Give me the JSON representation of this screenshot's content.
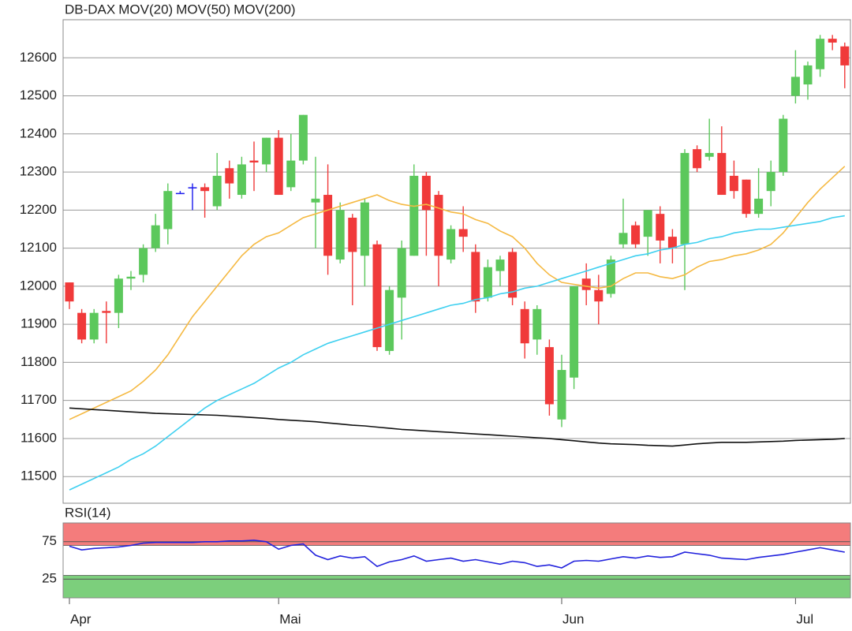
{
  "chart_data": [
    {
      "type": "candlestick",
      "series": [
        {
          "name": "DB-DAX",
          "color": "#e83030",
          "up_color": "#5cc85c",
          "down_color": "#f03a3a",
          "doji_color": "#1a1aee",
          "open": [
            12010,
            11930,
            11860,
            11935,
            11930,
            12020,
            12030,
            12100,
            12150,
            12245,
            12260,
            12260,
            12210,
            12310,
            12240,
            12330,
            12320,
            12390,
            12260,
            12330,
            12220,
            12240,
            12070,
            12180,
            12080,
            12110,
            11830,
            11970,
            12080,
            12290,
            12240,
            12070,
            12150,
            12090,
            11970,
            12040,
            12090,
            11940,
            11860,
            11840,
            11650,
            11760,
            12020,
            11990,
            11980,
            12110,
            12160,
            12130,
            12190,
            12130,
            12110,
            12360,
            12340,
            12350,
            12290,
            12280,
            12190,
            12250,
            12300,
            12500,
            12530,
            12570,
            12650,
            12630
          ],
          "high": [
            12010,
            11940,
            11940,
            11960,
            12030,
            12040,
            12110,
            12190,
            12270,
            12250,
            12270,
            12270,
            12350,
            12330,
            12340,
            12380,
            12390,
            12410,
            12400,
            12450,
            12340,
            12320,
            12220,
            12190,
            12230,
            12120,
            12000,
            12120,
            12320,
            12300,
            12250,
            12160,
            12210,
            12110,
            12070,
            12080,
            12100,
            11960,
            11950,
            11860,
            11820,
            12000,
            12060,
            12030,
            12080,
            12230,
            12170,
            12200,
            12210,
            12150,
            12360,
            12370,
            12440,
            12420,
            12330,
            12280,
            12310,
            12330,
            12450,
            12620,
            12590,
            12660,
            12660,
            12640
          ],
          "low": [
            11940,
            11850,
            11850,
            11850,
            11890,
            11990,
            12010,
            12090,
            12110,
            12245,
            12200,
            12180,
            12200,
            12230,
            12230,
            12250,
            12300,
            12240,
            12250,
            12320,
            12100,
            12030,
            12060,
            11950,
            12000,
            11830,
            11820,
            11860,
            12080,
            12080,
            12000,
            12060,
            12090,
            11930,
            11960,
            12000,
            11950,
            11810,
            11820,
            11660,
            11630,
            11730,
            11950,
            11900,
            11970,
            12100,
            12100,
            12080,
            12060,
            12060,
            11990,
            12300,
            12330,
            12240,
            12230,
            12180,
            12180,
            12210,
            12290,
            12480,
            12490,
            12550,
            12620,
            12520
          ],
          "close": [
            11960,
            11860,
            11930,
            11930,
            12020,
            12025,
            12100,
            12160,
            12250,
            12245,
            12260,
            12250,
            12290,
            12270,
            12320,
            12325,
            12390,
            12240,
            12330,
            12450,
            12230,
            12080,
            12200,
            12090,
            12220,
            11840,
            11990,
            12100,
            12290,
            12200,
            12080,
            12150,
            12130,
            11960,
            12050,
            12070,
            11970,
            11850,
            11940,
            11690,
            11780,
            12000,
            11990,
            11960,
            12070,
            12140,
            12110,
            12200,
            12120,
            12100,
            12350,
            12310,
            12350,
            12240,
            12250,
            12190,
            12230,
            12300,
            12440,
            12550,
            12580,
            12650,
            12640,
            12580
          ]
        },
        {
          "name": "MOV(20)",
          "color": "#f5b942",
          "values": [
            11650,
            11665,
            11680,
            11695,
            11710,
            11725,
            11750,
            11780,
            11820,
            11870,
            11920,
            11960,
            12000,
            12040,
            12080,
            12110,
            12130,
            12140,
            12160,
            12180,
            12190,
            12200,
            12210,
            12220,
            12230,
            12240,
            12225,
            12215,
            12210,
            12215,
            12205,
            12195,
            12190,
            12175,
            12165,
            12145,
            12130,
            12100,
            12060,
            12030,
            12010,
            12005,
            12000,
            11995,
            12000,
            12020,
            12035,
            12035,
            12025,
            12020,
            12030,
            12050,
            12065,
            12070,
            12080,
            12085,
            12095,
            12110,
            12140,
            12180,
            12220,
            12255,
            12285,
            12315
          ]
        },
        {
          "name": "MOV(50)",
          "color": "#3fd0f0",
          "values": [
            11465,
            11480,
            11495,
            11510,
            11525,
            11545,
            11560,
            11580,
            11605,
            11630,
            11655,
            11680,
            11700,
            11715,
            11730,
            11745,
            11765,
            11785,
            11800,
            11820,
            11835,
            11850,
            11860,
            11870,
            11880,
            11890,
            11900,
            11910,
            11920,
            11930,
            11940,
            11950,
            11955,
            11965,
            11970,
            11980,
            11985,
            11995,
            12000,
            12010,
            12020,
            12030,
            12040,
            12050,
            12060,
            12070,
            12080,
            12085,
            12095,
            12100,
            12110,
            12115,
            12125,
            12130,
            12140,
            12145,
            12150,
            12150,
            12155,
            12160,
            12165,
            12170,
            12180,
            12185
          ]
        },
        {
          "name": "MOV(200)",
          "color": "#111111",
          "values": [
            11680,
            11678,
            11676,
            11674,
            11672,
            11670,
            11668,
            11666,
            11665,
            11664,
            11663,
            11662,
            11661,
            11659,
            11657,
            11655,
            11653,
            11650,
            11648,
            11646,
            11644,
            11641,
            11638,
            11635,
            11633,
            11630,
            11627,
            11624,
            11622,
            11620,
            11618,
            11616,
            11614,
            11612,
            11610,
            11608,
            11606,
            11604,
            11602,
            11600,
            11597,
            11594,
            11591,
            11588,
            11586,
            11585,
            11584,
            11582,
            11581,
            11580,
            11583,
            11586,
            11588,
            11590,
            11590,
            11590,
            11591,
            11592,
            11593,
            11595,
            11596,
            11597,
            11598,
            11600
          ]
        }
      ],
      "ylim": [
        11430,
        12700
      ],
      "yticks": [
        11500,
        11600,
        11700,
        11800,
        11900,
        12000,
        12100,
        12200,
        12300,
        12400,
        12500,
        12600
      ],
      "grid": true
    },
    {
      "type": "line",
      "categories": [
        "Apr",
        null,
        null,
        null,
        null,
        null,
        null,
        null,
        null,
        null,
        null,
        null,
        null,
        null,
        null,
        null,
        null,
        "Mai",
        null,
        null,
        null,
        null,
        null,
        null,
        null,
        null,
        null,
        null,
        null,
        null,
        null,
        null,
        null,
        null,
        null,
        null,
        null,
        null,
        null,
        null,
        "Jun",
        null,
        null,
        null,
        null,
        null,
        null,
        null,
        null,
        null,
        null,
        null,
        null,
        null,
        null,
        null,
        null,
        null,
        null,
        "Jul",
        null,
        null,
        null,
        null
      ],
      "series": [
        {
          "name": "RSI(14)",
          "color": "#2222dd",
          "values": [
            69,
            64,
            66,
            67,
            68,
            70,
            73,
            74,
            74,
            74,
            74,
            75,
            75,
            76,
            76,
            77,
            75,
            65,
            70,
            72,
            57,
            51,
            56,
            53,
            55,
            42,
            48,
            51,
            56,
            49,
            51,
            53,
            49,
            51,
            48,
            45,
            49,
            47,
            42,
            44,
            40,
            49,
            50,
            49,
            52,
            55,
            53,
            56,
            54,
            55,
            61,
            59,
            57,
            53,
            52,
            51,
            54,
            56,
            58,
            61,
            64,
            67,
            64,
            61
          ]
        }
      ],
      "ylim": [
        0,
        100
      ],
      "yticks": [
        25,
        75
      ],
      "bands": [
        {
          "from": 70,
          "to": 100,
          "color": "#f47c7c"
        },
        {
          "from": 0,
          "to": 30,
          "color": "#7ccf7c"
        }
      ]
    }
  ]
}
